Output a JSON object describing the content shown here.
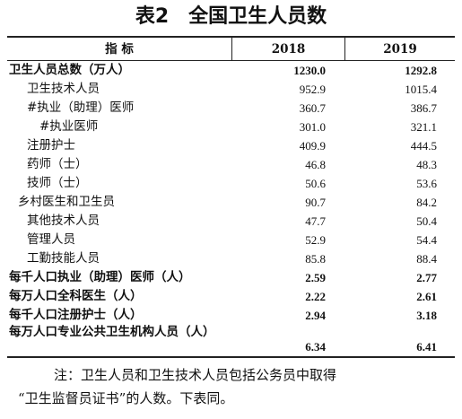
{
  "table": {
    "title_prefix": "表2",
    "title_main": "全国卫生人员数",
    "columns": {
      "indicator": "指 标",
      "y2018": "2018",
      "y2019": "2019"
    },
    "rows": [
      {
        "label": "卫生人员总数（万人）",
        "v2018": "1230.0",
        "v2019": "1292.8"
      },
      {
        "label": "卫生技术人员",
        "v2018": "952.9",
        "v2019": "1015.4"
      },
      {
        "label": "#执业（助理）医师",
        "v2018": "360.7",
        "v2019": "386.7"
      },
      {
        "label": "#执业医师",
        "v2018": "301.0",
        "v2019": "321.1"
      },
      {
        "label": "注册护士",
        "v2018": "409.9",
        "v2019": "444.5"
      },
      {
        "label": "药师（士）",
        "v2018": "46.8",
        "v2019": "48.3"
      },
      {
        "label": "技师（士）",
        "v2018": "50.6",
        "v2019": "53.6"
      },
      {
        "label": "乡村医生和卫生员",
        "v2018": "90.7",
        "v2019": "84.2"
      },
      {
        "label": "其他技术人员",
        "v2018": "47.7",
        "v2019": "50.4"
      },
      {
        "label": "管理人员",
        "v2018": "52.9",
        "v2019": "54.4"
      },
      {
        "label": "工勤技能人员",
        "v2018": "85.8",
        "v2019": "88.4"
      },
      {
        "label": "每千人口执业（助理）医师（人）",
        "v2018": "2.59",
        "v2019": "2.77"
      },
      {
        "label": "每万人口全科医生（人）",
        "v2018": "2.22",
        "v2019": "2.61"
      },
      {
        "label": "每千人口注册护士（人）",
        "v2018": "2.94",
        "v2019": "3.18"
      },
      {
        "label": "每万人口专业公共卫生机构人员（人）",
        "v2018": "6.34",
        "v2019": "6.41"
      }
    ]
  },
  "note": {
    "line1": "注：卫生人员和卫生技术人员包括公务员中取得",
    "line2": "“卫生监督员证书”的人数。下表同。"
  }
}
